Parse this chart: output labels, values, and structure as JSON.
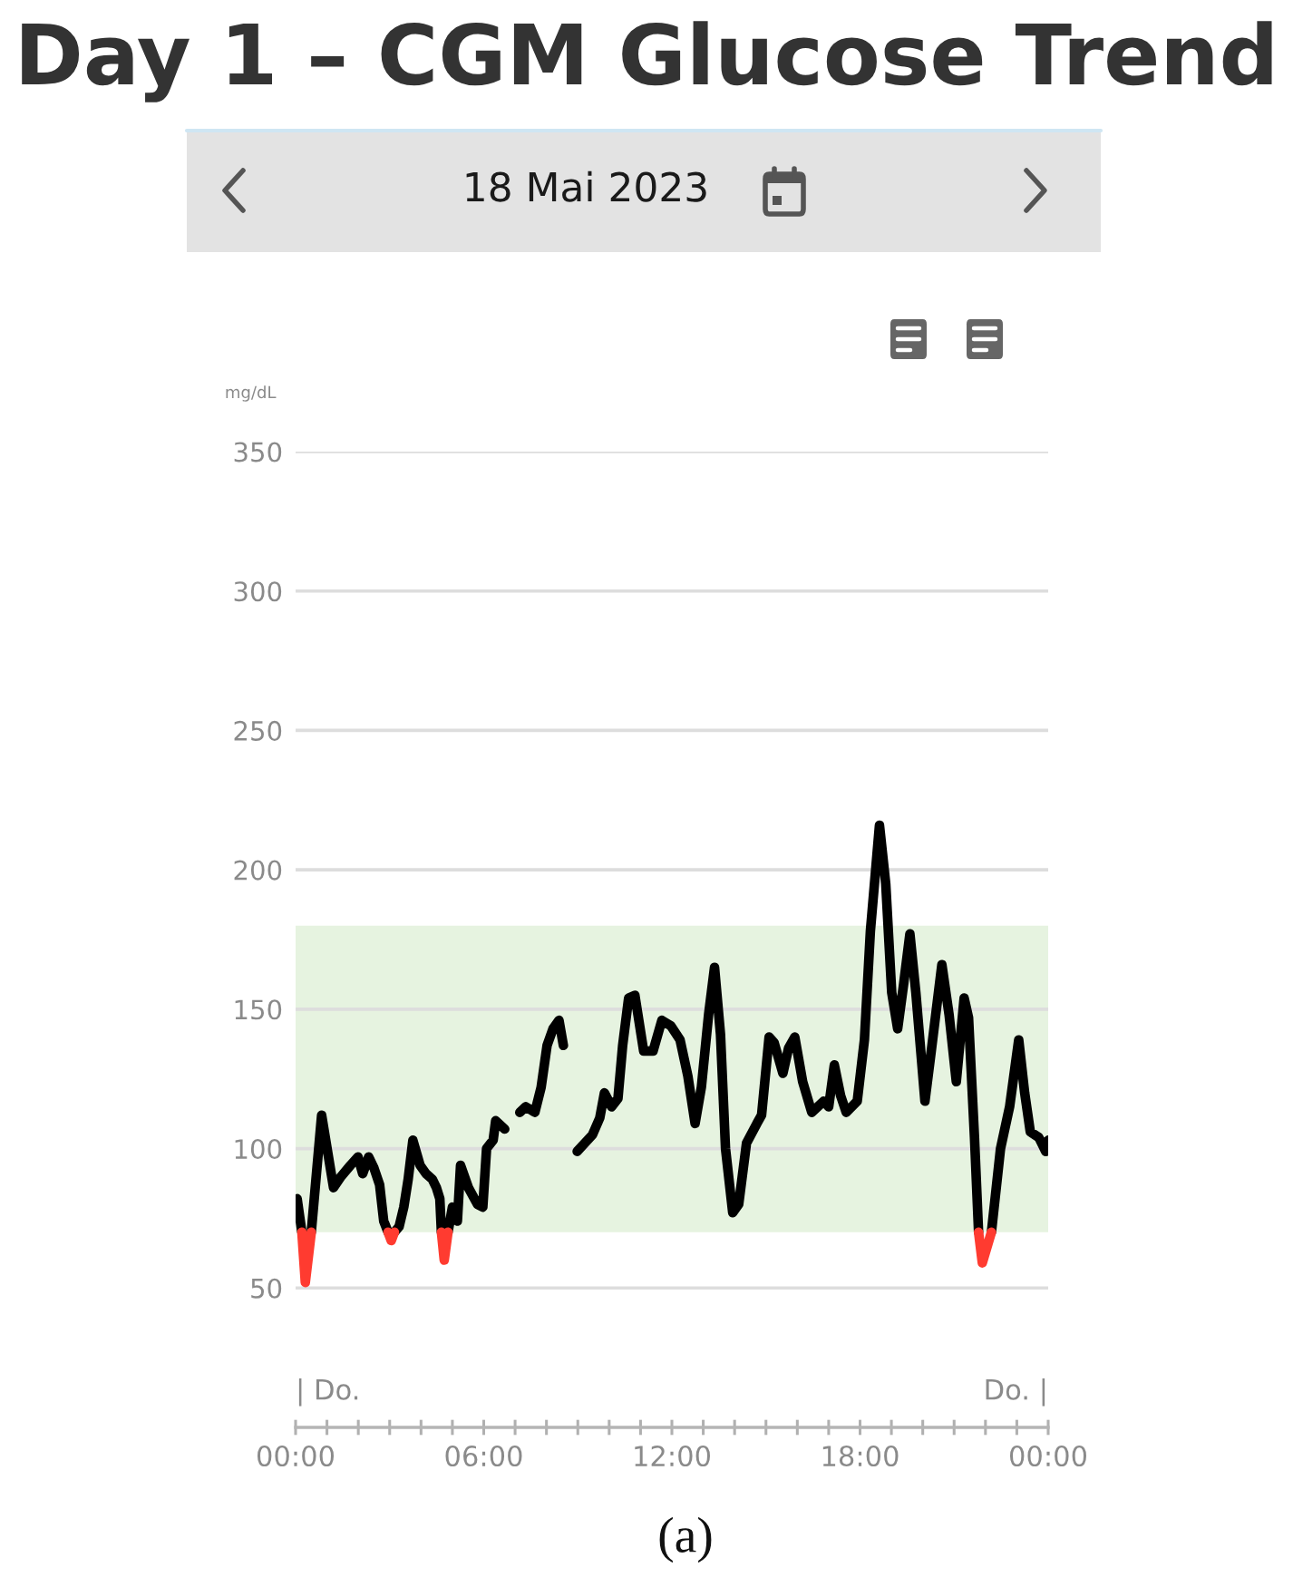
{
  "chart_data": {
    "type": "line",
    "title": "Day 1 – CGM Glucose Trend",
    "subtitle": "18 Mai 2023",
    "ylabel": "mg/dL",
    "annotations": [
      "| Do.",
      "Do. |",
      "(a)"
    ],
    "xlim": [
      0,
      24
    ],
    "xticks": [
      {
        "value": 0,
        "label": "00:00"
      },
      {
        "value": 1,
        "label": null
      },
      {
        "value": 2,
        "label": null
      },
      {
        "value": 3,
        "label": null
      },
      {
        "value": 4,
        "label": null
      },
      {
        "value": 5,
        "label": null
      },
      {
        "value": 6,
        "label": "06:00"
      },
      {
        "value": 7,
        "label": null
      },
      {
        "value": 8,
        "label": null
      },
      {
        "value": 9,
        "label": null
      },
      {
        "value": 10,
        "label": null
      },
      {
        "value": 11,
        "label": null
      },
      {
        "value": 12,
        "label": "12:00"
      },
      {
        "value": 13,
        "label": null
      },
      {
        "value": 14,
        "label": null
      },
      {
        "value": 15,
        "label": null
      },
      {
        "value": 16,
        "label": null
      },
      {
        "value": 17,
        "label": null
      },
      {
        "value": 18,
        "label": "18:00"
      },
      {
        "value": 19,
        "label": null
      },
      {
        "value": 20,
        "label": null
      },
      {
        "value": 21,
        "label": null
      },
      {
        "value": 22,
        "label": null
      },
      {
        "value": 23,
        "label": null
      },
      {
        "value": 24,
        "label": "00:00"
      }
    ],
    "ylim": [
      0,
      350
    ],
    "yticks": [
      50,
      100,
      150,
      200,
      250,
      300,
      350
    ],
    "grid": "y",
    "bands": [
      {
        "axis": "y",
        "from": 70,
        "to": 180,
        "color": "#e6f3e0"
      }
    ],
    "series": [
      {
        "color": "#000000",
        "x": [
          0.05,
          0.2,
          0.31,
          0.5,
          0.83,
          1.21,
          1.45,
          1.75,
          1.99,
          2.14,
          2.33,
          2.5,
          2.68,
          2.81,
          2.95,
          3.05,
          3.15,
          3.3,
          3.45,
          3.59,
          3.74,
          3.97,
          4.16,
          4.36,
          4.49,
          4.6,
          4.65,
          4.74,
          4.86,
          5.0,
          5.16,
          5.26,
          5.51,
          5.8,
          5.97,
          6.09,
          6.3,
          6.38,
          6.67,
          6.9,
          7.15,
          7.34,
          7.63,
          7.83,
          8.02,
          8.21,
          8.4,
          8.54,
          8.75,
          8.98,
          9.47,
          9.7,
          9.85,
          10.08,
          10.28,
          10.43,
          10.62,
          10.82,
          11.1,
          11.4,
          11.68,
          11.97,
          12.26,
          12.51,
          12.74,
          12.94,
          13.17,
          13.36,
          13.55,
          13.71,
          13.94,
          14.13,
          14.38,
          14.71,
          14.86,
          15.1,
          15.26,
          15.54,
          15.72,
          15.92,
          16.17,
          16.46,
          16.84,
          17.0,
          17.18,
          17.38,
          17.56,
          17.91,
          18.14,
          18.33,
          18.62,
          18.82,
          19.01,
          19.2,
          19.39,
          19.59,
          19.78,
          20.07,
          20.26,
          20.61,
          20.84,
          21.07,
          21.32,
          21.46,
          21.65,
          21.78,
          21.9,
          22.19,
          22.48,
          22.77,
          23.06,
          23.25,
          23.43,
          23.7,
          23.92,
          24.0
        ],
        "values": [
          82,
          70,
          null,
          70,
          112,
          86,
          90,
          94,
          97,
          91,
          97,
          93,
          87,
          74,
          70,
          null,
          70,
          72,
          79,
          89,
          103,
          94,
          91,
          89,
          86,
          82,
          70,
          null,
          70,
          79,
          74,
          94,
          86,
          80,
          79,
          100,
          103,
          110,
          107,
          null,
          113,
          115,
          113,
          122,
          137,
          143,
          146,
          137,
          null,
          99,
          105,
          111,
          120,
          115,
          118,
          137,
          154,
          155,
          135,
          135,
          146,
          144,
          139,
          126,
          109,
          122,
          148,
          165,
          141,
          100,
          77,
          80,
          102,
          109,
          112,
          140,
          138,
          127,
          136,
          140,
          124,
          113,
          117,
          115,
          130,
          119,
          113,
          117,
          139,
          178,
          216,
          195,
          156,
          143,
          159,
          177,
          156,
          117,
          134,
          166,
          148,
          124,
          154,
          147,
          104,
          70,
          null,
          70,
          100,
          115,
          139,
          120,
          106,
          104,
          99,
          103
        ]
      },
      {
        "color": "#ff3b30",
        "x": [
          0.2,
          0.31,
          0.5,
          1.5,
          2.95,
          3.05,
          3.15,
          4.0,
          4.65,
          4.74,
          4.86,
          12.0,
          21.78,
          21.9,
          22.19
        ],
        "values": [
          70,
          52,
          70,
          null,
          70,
          67,
          70,
          null,
          70,
          60,
          70,
          null,
          70,
          59,
          70
        ]
      }
    ]
  }
}
